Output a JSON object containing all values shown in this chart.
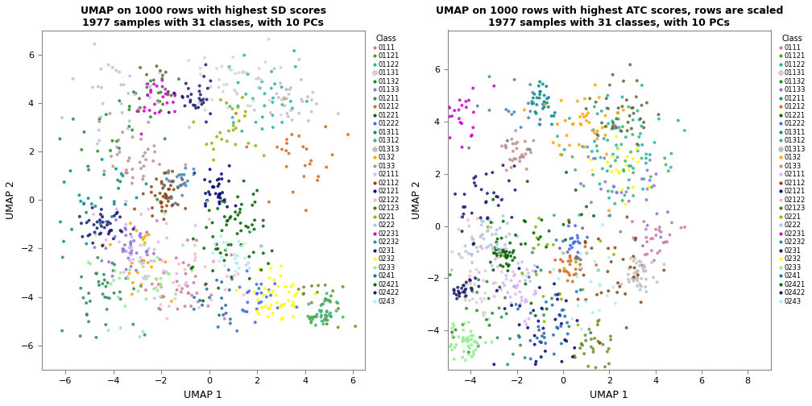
{
  "title1": "UMAP on 1000 rows with highest SD scores\n1977 samples with 31 classes, with 10 PCs",
  "title2": "UMAP on 1000 rows with highest ATC scores, rows are scaled\n1977 samples with 31 classes, with 10 PCs",
  "xlabel": "UMAP 1",
  "ylabel": "UMAP 2",
  "xlim1": [
    -7,
    6.5
  ],
  "ylim1": [
    -7,
    7
  ],
  "xlim2": [
    -5,
    9
  ],
  "ylim2": [
    -5.5,
    7.5
  ],
  "xticks1": [
    -6,
    -4,
    -2,
    0,
    2,
    4,
    6
  ],
  "yticks1": [
    -6,
    -4,
    -2,
    0,
    2,
    4,
    6
  ],
  "xticks2": [
    -4,
    -2,
    0,
    2,
    4,
    6,
    8
  ],
  "yticks2": [
    -4,
    -2,
    0,
    2,
    4,
    6
  ],
  "legend_title": "Class",
  "classes": [
    "0111",
    "01121",
    "01122",
    "01131",
    "01132",
    "01133",
    "01211",
    "01212",
    "01221",
    "01222",
    "01311",
    "01312",
    "01313",
    "0132",
    "0133",
    "02111",
    "02112",
    "02121",
    "02122",
    "02123",
    "0221",
    "0222",
    "02231",
    "02232",
    "0231",
    "0232",
    "0233",
    "0241",
    "02421",
    "02422",
    "0243"
  ],
  "colors": [
    "#CC79A7",
    "#8FBC8F",
    "#7FFFD4",
    "#FFFFFF",
    "#006400",
    "#BDB2E0",
    "#006400",
    "#D2691E",
    "#006400",
    "#4169E1",
    "#228B22",
    "#228B22",
    "#FFFFFF",
    "#FFA500",
    "#BC8F8F",
    "#D8B4F8",
    "#8B4513",
    "#000080",
    "#FFB6C1",
    "#556B2F",
    "#8DB600",
    "#B0C4DE",
    "#CC00CC",
    "#4682B4",
    "#191970",
    "#FFFF00",
    "#90EE90",
    "#1F6CB0",
    "#006400",
    "#191970",
    "#AFEEEE"
  ],
  "background_color": "#FFFFFF",
  "plot_bg": "#FFFFFF",
  "seed1": 42,
  "seed2": 123,
  "n_points": 1000
}
